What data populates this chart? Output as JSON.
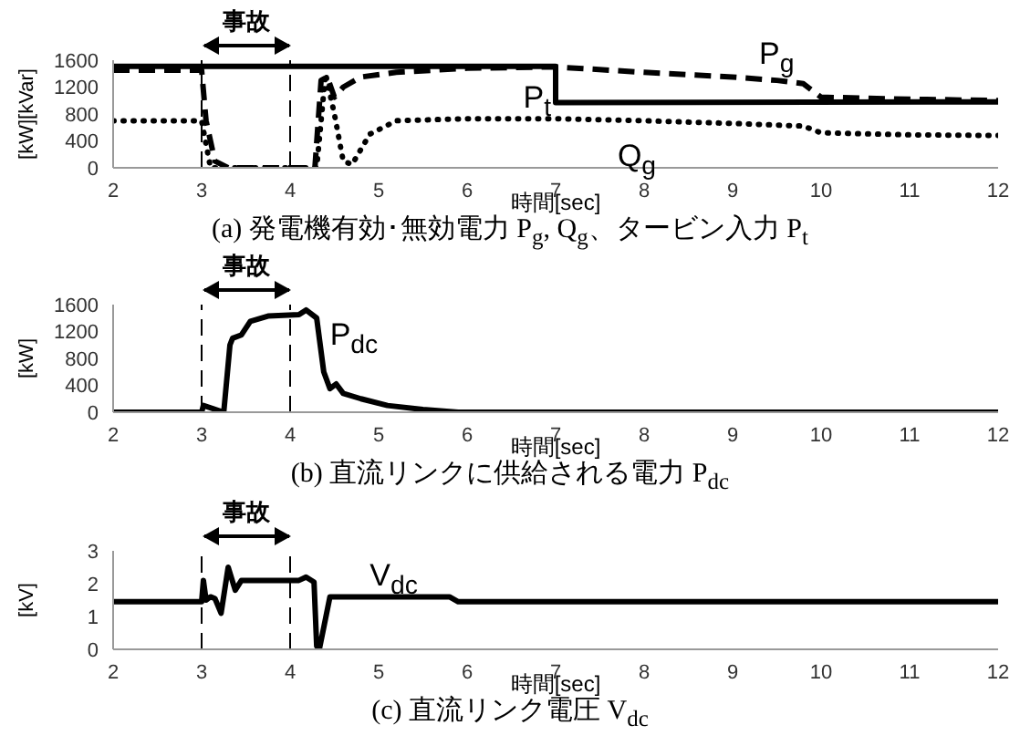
{
  "chart_data": [
    {
      "type": "line",
      "title": "(a) 発電機有効･無効電力 P$_{g}$, Q$_{g}$、タービン入力 P$_{t}$",
      "xlabel": "時間[sec]",
      "ylabel": "[kW][kVar]",
      "xlim": [
        2,
        12
      ],
      "xticks": [
        2,
        3,
        4,
        5,
        6,
        7,
        8,
        9,
        10,
        11,
        12
      ],
      "ylim": [
        0,
        1600
      ],
      "yticks": [
        0,
        400,
        800,
        1200,
        1600
      ],
      "annotations": [
        "事故"
      ],
      "ref_lines": [
        {
          "axis": "x",
          "value": 3,
          "line_style": "dashed",
          "color": "#000000"
        },
        {
          "axis": "x",
          "value": 4,
          "line_style": "dashed",
          "color": "#000000"
        }
      ],
      "series": [
        {
          "name": "P$_{g}$",
          "color": "#000000",
          "line_style": "dashed",
          "x": [
            2,
            3,
            3.05,
            3.15,
            3.3,
            4.28,
            4.35,
            4.42,
            4.5,
            4.6,
            4.8,
            5.2,
            6,
            7,
            8,
            9,
            9.5,
            9.8,
            10,
            11,
            12
          ],
          "values": [
            1450,
            1450,
            700,
            100,
            0,
            0,
            1300,
            1350,
            1050,
            1200,
            1350,
            1420,
            1480,
            1500,
            1420,
            1350,
            1300,
            1250,
            1050,
            1020,
            1000
          ]
        },
        {
          "name": "P$_{t}$",
          "color": "#000000",
          "line_style": "solid",
          "x": [
            2,
            7,
            7,
            12
          ],
          "values": [
            1510,
            1510,
            970,
            980
          ]
        },
        {
          "name": "Q$_{g}$",
          "color": "#000000",
          "line_style": "dotted",
          "x": [
            2,
            3,
            3.1,
            4.3,
            4.4,
            4.5,
            4.6,
            4.7,
            4.9,
            5.2,
            6,
            7,
            8,
            9,
            9.8,
            10,
            11,
            12
          ],
          "values": [
            700,
            700,
            0,
            0,
            1400,
            800,
            100,
            50,
            500,
            700,
            730,
            730,
            700,
            660,
            620,
            520,
            490,
            480
          ]
        }
      ]
    },
    {
      "type": "line",
      "title": "(b) 直流リンクに供給される電力 P$_{dc}$",
      "xlabel": "時間[sec]",
      "ylabel": "[kW]",
      "xlim": [
        2,
        12
      ],
      "xticks": [
        2,
        3,
        4,
        5,
        6,
        7,
        8,
        9,
        10,
        11,
        12
      ],
      "ylim": [
        0,
        1600
      ],
      "yticks": [
        0,
        400,
        800,
        1200,
        1600
      ],
      "annotations": [
        "事故"
      ],
      "ref_lines": [
        {
          "axis": "x",
          "value": 3,
          "line_style": "dashed",
          "color": "#000000"
        },
        {
          "axis": "x",
          "value": 4,
          "line_style": "dashed",
          "color": "#000000"
        }
      ],
      "series": [
        {
          "name": "P$_{dc}$",
          "color": "#000000",
          "line_style": "solid",
          "x": [
            2,
            3,
            3.02,
            3.25,
            3.32,
            3.35,
            3.45,
            3.55,
            3.75,
            4.1,
            4.18,
            4.3,
            4.38,
            4.45,
            4.52,
            4.6,
            4.8,
            5.1,
            5.5,
            5.9,
            12
          ],
          "values": [
            0,
            0,
            100,
            0,
            1000,
            1100,
            1150,
            1350,
            1430,
            1450,
            1520,
            1400,
            600,
            350,
            420,
            280,
            200,
            100,
            40,
            0,
            0
          ]
        }
      ]
    },
    {
      "type": "line",
      "title": "(c) 直流リンク電圧 V$_{dc}$",
      "xlabel": "時間[sec]",
      "ylabel": "[kV]",
      "xlim": [
        2,
        12
      ],
      "xticks": [
        2,
        3,
        4,
        5,
        6,
        7,
        8,
        9,
        10,
        11,
        12
      ],
      "ylim": [
        0,
        3
      ],
      "yticks": [
        0,
        1,
        2,
        3
      ],
      "annotations": [
        "事故"
      ],
      "ref_lines": [
        {
          "axis": "x",
          "value": 3,
          "line_style": "dashed",
          "color": "#000000"
        },
        {
          "axis": "x",
          "value": 4,
          "line_style": "dashed",
          "color": "#000000"
        }
      ],
      "series": [
        {
          "name": "V$_{dc}$",
          "color": "#000000",
          "line_style": "solid",
          "x": [
            2,
            3,
            3.02,
            3.05,
            3.1,
            3.15,
            3.22,
            3.3,
            3.38,
            3.45,
            4.1,
            4.18,
            4.27,
            4.3,
            4.33,
            4.45,
            5.8,
            5.9,
            12
          ],
          "values": [
            1.45,
            1.45,
            2.1,
            1.5,
            1.6,
            1.55,
            1.1,
            2.5,
            1.8,
            2.1,
            2.1,
            2.2,
            2.05,
            0.1,
            0,
            1.6,
            1.6,
            1.45,
            1.45
          ]
        }
      ]
    }
  ]
}
